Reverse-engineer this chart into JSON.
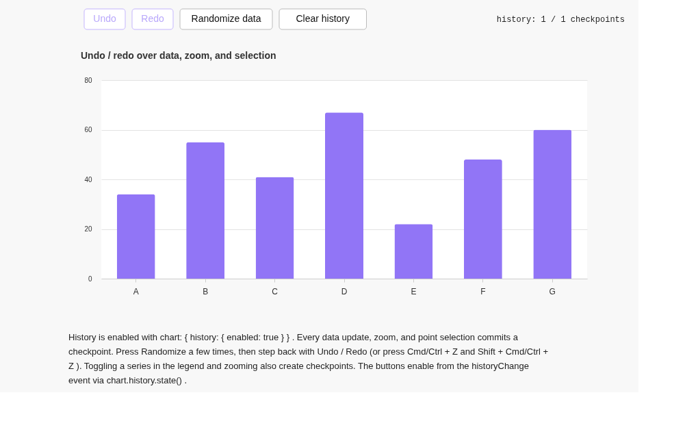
{
  "chart_data": {
    "type": "bar",
    "title": "Undo / redo over data, zoom, and selection",
    "categories": [
      "A",
      "B",
      "C",
      "D",
      "E",
      "F",
      "G"
    ],
    "values": [
      34,
      55,
      41,
      67,
      22,
      48,
      60
    ],
    "color": "#9175f6",
    "ylim": [
      0,
      80
    ],
    "yticks": [
      0,
      20,
      40,
      60,
      80
    ],
    "grid": "y",
    "annotations": [
      "Undo",
      "Redo",
      "Randomize data",
      "Clear history",
      "history: 1 / 1 checkpoints",
      "History is enabled with chart: { history: { enabled: true } } . Every data update, zoom, and point selection commits a checkpoint. Press Randomize a few times, then step back with Undo / Redo (or press Cmd/Ctrl + Z and Shift + Cmd/Ctrl + Z ). Toggling a series in the legend and zooming also create checkpoints. The buttons enable from the historyChange event via chart.history.state() ."
    ]
  }
}
